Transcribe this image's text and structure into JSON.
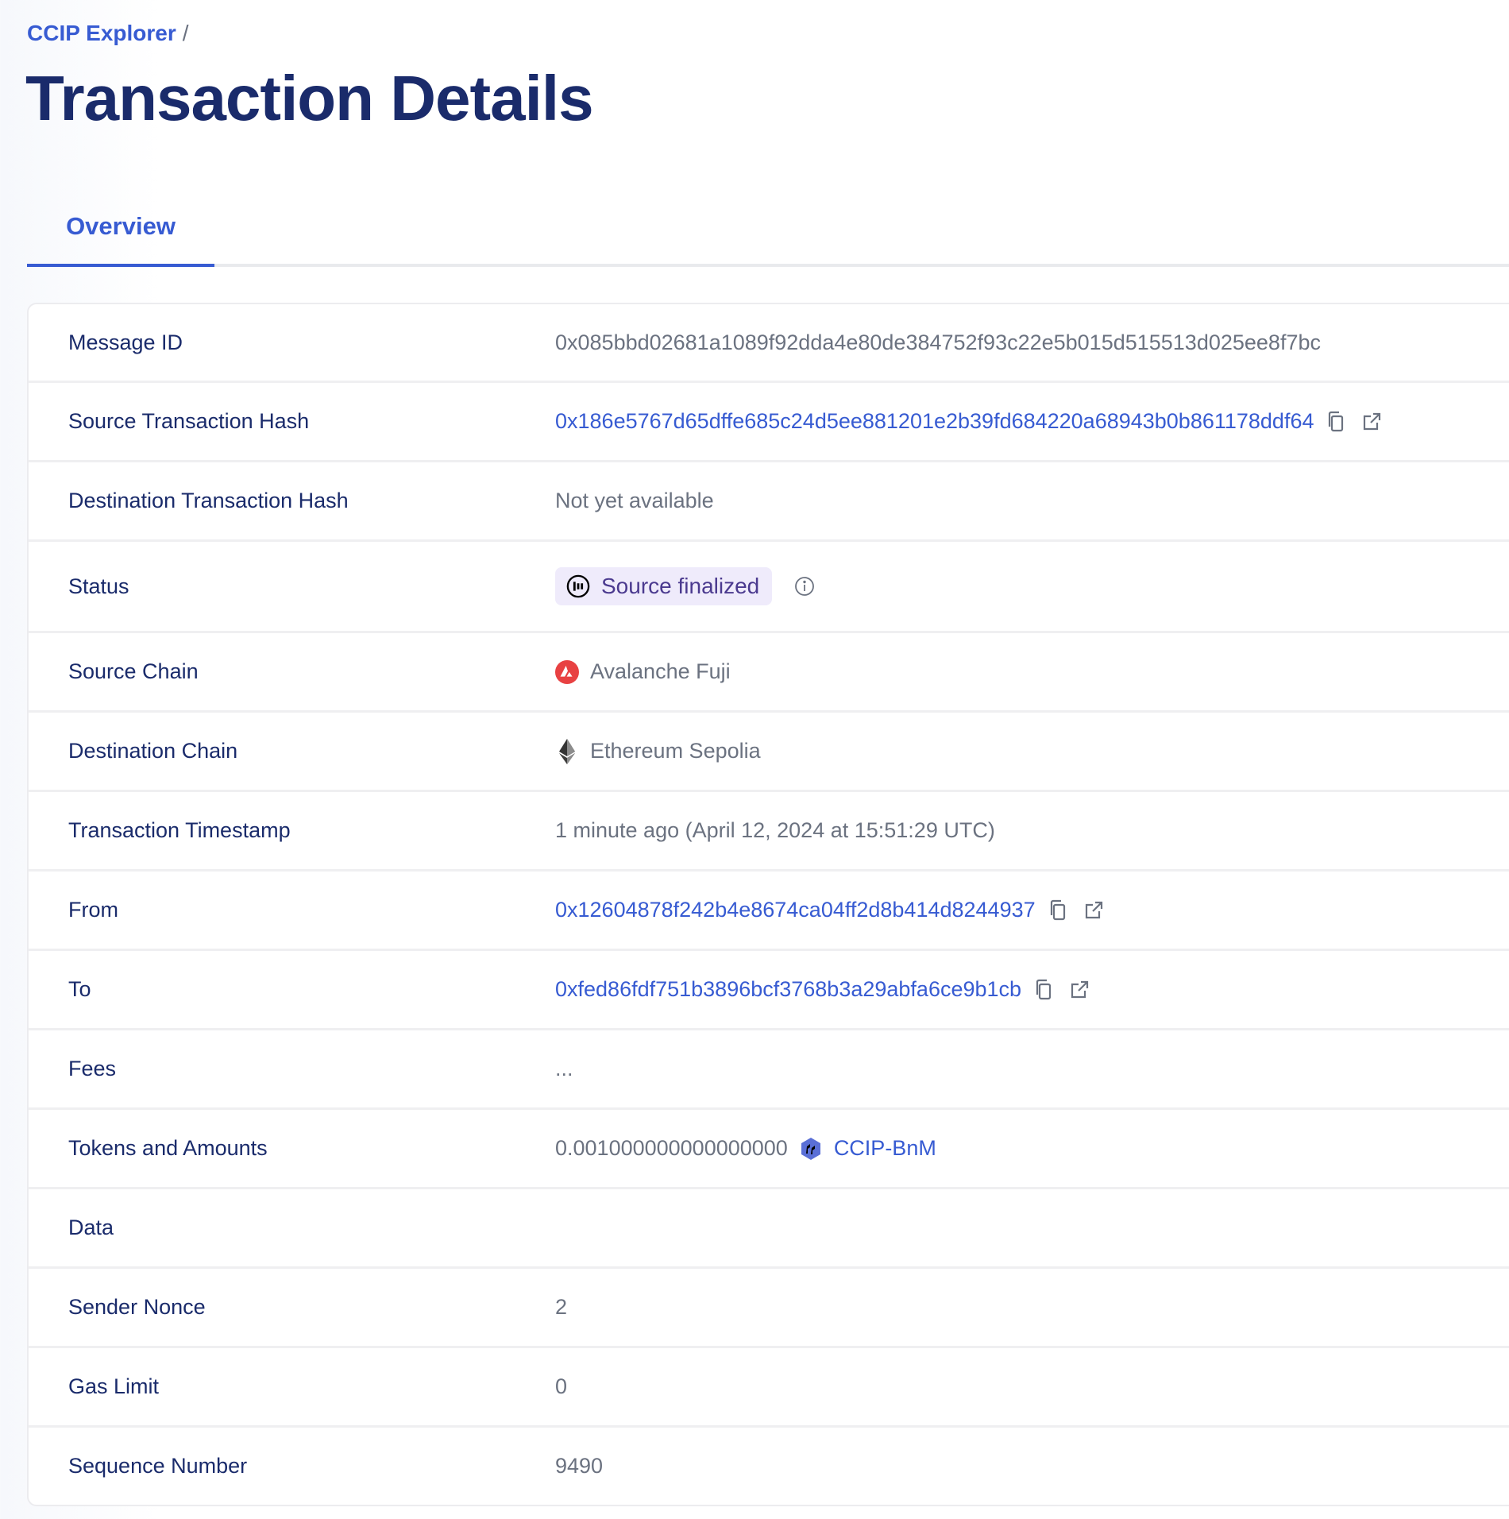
{
  "breadcrumb": {
    "root": "CCIP Explorer",
    "separator": "/"
  },
  "page_title": "Transaction Details",
  "tabs": [
    {
      "label": "Overview",
      "active": true
    }
  ],
  "colors": {
    "accent": "#375bd2",
    "title": "#1a2b6b",
    "status_bg": "#efebfb",
    "status_text": "#4b3a8f",
    "avalanche": "#e84142"
  },
  "rows": {
    "message_id": {
      "label": "Message ID",
      "value": "0x085bbd02681a1089f92dda4e80de384752f93c22e5b015d515513d025ee8f7bc"
    },
    "source_tx": {
      "label": "Source Transaction Hash",
      "value": "0x186e5767d65dffe685c24d5ee881201e2b39fd684220a68943b0b861178ddf64"
    },
    "dest_tx": {
      "label": "Destination Transaction Hash",
      "value": "Not yet available"
    },
    "status": {
      "label": "Status",
      "value": "Source finalized",
      "icon": "info-icon"
    },
    "source_chain": {
      "label": "Source Chain",
      "value": "Avalanche Fuji",
      "icon": "avalanche-icon"
    },
    "dest_chain": {
      "label": "Destination Chain",
      "value": "Ethereum Sepolia",
      "icon": "ethereum-icon"
    },
    "timestamp": {
      "label": "Transaction Timestamp",
      "value": "1 minute ago (April 12, 2024 at 15:51:29 UTC)"
    },
    "from": {
      "label": "From",
      "value": "0x12604878f242b4e8674ca04ff2d8b414d8244937"
    },
    "to": {
      "label": "To",
      "value": "0xfed86fdf751b3896bcf3768b3a29abfa6ce9b1cb"
    },
    "fees": {
      "label": "Fees",
      "value": "..."
    },
    "tokens": {
      "label": "Tokens and Amounts",
      "amount": "0.001000000000000000",
      "token": "CCIP-BnM"
    },
    "data": {
      "label": "Data",
      "value": ""
    },
    "nonce": {
      "label": "Sender Nonce",
      "value": "2"
    },
    "gas": {
      "label": "Gas Limit",
      "value": "0"
    },
    "sequence": {
      "label": "Sequence Number",
      "value": "9490"
    }
  }
}
